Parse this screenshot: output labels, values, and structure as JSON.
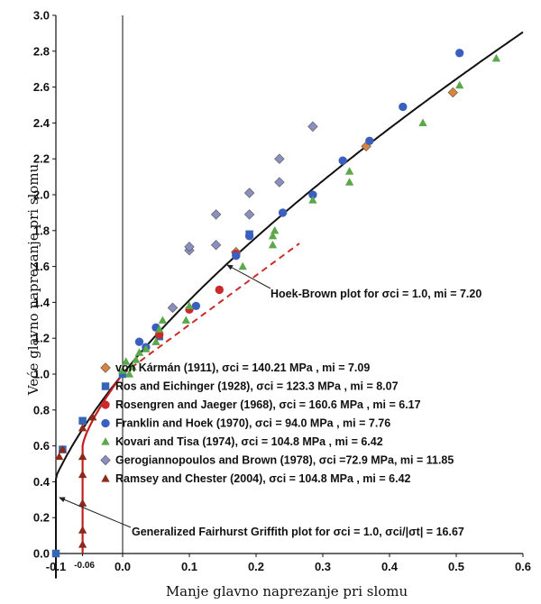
{
  "chart_data": {
    "type": "scatter",
    "xlabel": "Manje glavno naprezanje pri slomu",
    "ylabel": "Veće glavno naprezanje pri slomu",
    "xlim": [
      -0.1,
      0.6
    ],
    "ylim": [
      0.0,
      3.0
    ],
    "x_ticks": [
      "-0.1",
      "0.0",
      "0.1",
      "0.2",
      "0.3",
      "0.4",
      "0.5",
      "0.6"
    ],
    "y_ticks": [
      "0.0",
      "0.2",
      "0.4",
      "0.6",
      "0.8",
      "1.0",
      "1.2",
      "1.4",
      "1.6",
      "1.8",
      "2.0",
      "2.2",
      "2.4",
      "2.6",
      "2.8",
      "3.0"
    ],
    "extra_x_tick": {
      "value": -0.06,
      "label": "-0.06"
    },
    "legend_position": "center",
    "series": [
      {
        "name": "von Kármán (1911), σci = 140.21 MPa , mi = 7.09",
        "marker": "diamond",
        "color": "#d9843a",
        "points": [
          [
            0.17,
            1.68
          ],
          [
            0.365,
            2.27
          ],
          [
            0.495,
            2.57
          ]
        ]
      },
      {
        "name": "Ros and Eichinger (1928), σci = 123.3 MPa , mi = 8.07",
        "marker": "square",
        "color": "#3566b5",
        "points": [
          [
            -0.1,
            0.0
          ],
          [
            -0.09,
            0.58
          ],
          [
            -0.06,
            0.74
          ],
          [
            0.0,
            1.0
          ],
          [
            0.055,
            1.21
          ],
          [
            0.19,
            1.78
          ]
        ]
      },
      {
        "name": "Rosengren and Jaeger (1968), σci = 160.6 MPa , mi = 6.17",
        "marker": "circle",
        "color": "#cc2a2a",
        "points": [
          [
            0.1,
            1.36
          ],
          [
            0.145,
            1.47
          ],
          [
            0.055,
            1.22
          ],
          [
            0.17,
            1.67
          ]
        ]
      },
      {
        "name": "Franklin and Hoek (1970), σci = 94.0 MPa , mi = 7.76",
        "marker": "circle",
        "color": "#3a5fbf",
        "points": [
          [
            0.025,
            1.18
          ],
          [
            0.035,
            1.15
          ],
          [
            0.05,
            1.26
          ],
          [
            0.11,
            1.38
          ],
          [
            0.17,
            1.66
          ],
          [
            0.19,
            1.77
          ],
          [
            0.24,
            1.9
          ],
          [
            0.285,
            2.0
          ],
          [
            0.33,
            2.19
          ],
          [
            0.37,
            2.3
          ],
          [
            0.42,
            2.49
          ],
          [
            0.505,
            2.79
          ]
        ]
      },
      {
        "name": "Kovari and Tisa (1974), σci = 104.8 MPa , mi = 6.42",
        "marker": "triangle",
        "color": "#5aa84a",
        "points": [
          [
            0.0,
            1.02
          ],
          [
            0.005,
            1.07
          ],
          [
            0.01,
            1.0
          ],
          [
            0.015,
            1.04
          ],
          [
            0.02,
            1.08
          ],
          [
            0.025,
            1.12
          ],
          [
            0.035,
            1.14
          ],
          [
            0.05,
            1.18
          ],
          [
            0.055,
            1.25
          ],
          [
            0.06,
            1.3
          ],
          [
            0.095,
            1.3
          ],
          [
            0.1,
            1.38
          ],
          [
            0.18,
            1.6
          ],
          [
            0.225,
            1.72
          ],
          [
            0.225,
            1.77
          ],
          [
            0.228,
            1.8
          ],
          [
            0.285,
            1.97
          ],
          [
            0.34,
            2.07
          ],
          [
            0.34,
            2.13
          ],
          [
            0.45,
            2.4
          ],
          [
            0.505,
            2.61
          ],
          [
            0.56,
            2.76
          ]
        ]
      },
      {
        "name": "Gerogiannopoulos and Brown (1978), σci =72.9 MPa, mi = 11.85",
        "marker": "diamond",
        "color": "#8a8fbf",
        "points": [
          [
            0.075,
            1.37
          ],
          [
            0.1,
            1.69
          ],
          [
            0.1,
            1.71
          ],
          [
            0.14,
            1.72
          ],
          [
            0.14,
            1.89
          ],
          [
            0.19,
            1.89
          ],
          [
            0.19,
            2.01
          ],
          [
            0.235,
            2.07
          ],
          [
            0.235,
            2.2
          ],
          [
            0.285,
            2.38
          ]
        ]
      },
      {
        "name": "Ramsey and Chester (2004), σci = 104.8 MPa , mi = 6.42",
        "marker": "triangle",
        "color": "#8b2a1a",
        "points": [
          [
            -0.095,
            0.54
          ],
          [
            -0.09,
            0.58
          ],
          [
            -0.06,
            0.7
          ],
          [
            -0.06,
            0.54
          ],
          [
            -0.06,
            0.44
          ],
          [
            -0.06,
            0.28
          ],
          [
            -0.06,
            0.13
          ],
          [
            -0.06,
            0.05
          ],
          [
            -0.045,
            0.76
          ]
        ]
      }
    ],
    "curves": {
      "hoek_brown": {
        "label": "Hoek-Brown plot for σci = 1.0, mi = 7.20"
      },
      "fairhurst_griffith": {
        "label": "Generalized Fairhurst Griffith plot for σci = 1.0, σci/|σt| = 16.67"
      }
    }
  }
}
